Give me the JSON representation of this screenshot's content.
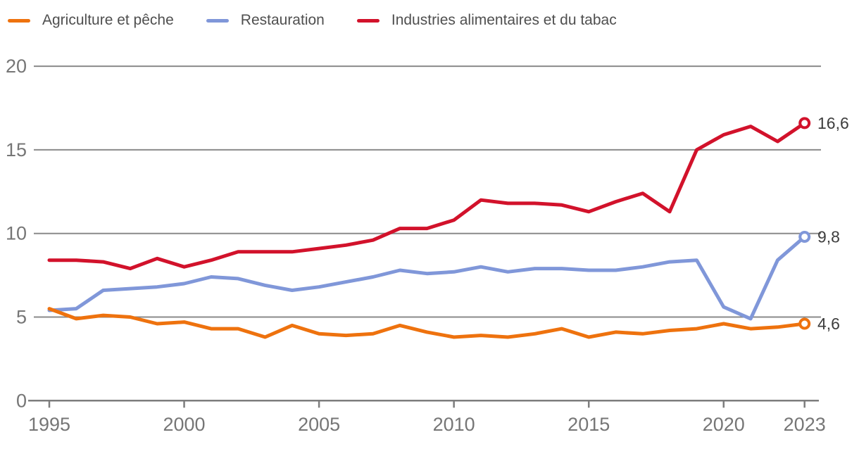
{
  "chart_data": {
    "type": "line",
    "title": "",
    "x": [
      1995,
      1996,
      1997,
      1998,
      1999,
      2000,
      2001,
      2002,
      2003,
      2004,
      2005,
      2006,
      2007,
      2008,
      2009,
      2010,
      2011,
      2012,
      2013,
      2014,
      2015,
      2016,
      2017,
      2018,
      2019,
      2020,
      2021,
      2022,
      2023
    ],
    "series": [
      {
        "name": "Agriculture et pêche",
        "color": "#EE720E",
        "end_label": "4,6",
        "values": [
          5.5,
          4.9,
          5.1,
          5.0,
          4.6,
          4.7,
          4.3,
          4.3,
          3.8,
          4.5,
          4.0,
          3.9,
          4.0,
          4.5,
          4.1,
          3.8,
          3.9,
          3.8,
          4.0,
          4.3,
          3.8,
          4.1,
          4.0,
          4.2,
          4.3,
          4.6,
          4.3,
          4.4,
          4.6
        ]
      },
      {
        "name": "Restauration",
        "color": "#8097D9",
        "end_label": "9,8",
        "values": [
          5.4,
          5.5,
          6.6,
          6.7,
          6.8,
          7.0,
          7.4,
          7.3,
          6.9,
          6.6,
          6.8,
          7.1,
          7.4,
          7.8,
          7.6,
          7.7,
          8.0,
          7.7,
          7.9,
          7.9,
          7.8,
          7.8,
          8.0,
          8.3,
          8.4,
          5.6,
          4.9,
          8.4,
          9.8
        ]
      },
      {
        "name": "Industries alimentaires et du tabac",
        "color": "#D2122B",
        "end_label": "16,6",
        "values": [
          8.4,
          8.4,
          8.3,
          7.9,
          8.5,
          8.0,
          8.4,
          8.9,
          8.9,
          8.9,
          9.1,
          9.3,
          9.6,
          10.3,
          10.3,
          10.8,
          12.0,
          11.8,
          11.8,
          11.7,
          11.3,
          11.9,
          12.4,
          11.3,
          15.0,
          15.9,
          16.4,
          15.5,
          16.6
        ]
      }
    ],
    "ylim": [
      0,
      20
    ],
    "yticks": [
      0,
      5,
      10,
      15,
      20
    ],
    "xticks": [
      1995,
      2000,
      2005,
      2010,
      2015,
      2020,
      2023
    ],
    "grid": true,
    "legend_position": "top",
    "draw_order": [
      1,
      0,
      2
    ],
    "grid_color": "#8a8a8a",
    "axis_color": "#7d7d7d",
    "marker_style": "open-circle"
  }
}
